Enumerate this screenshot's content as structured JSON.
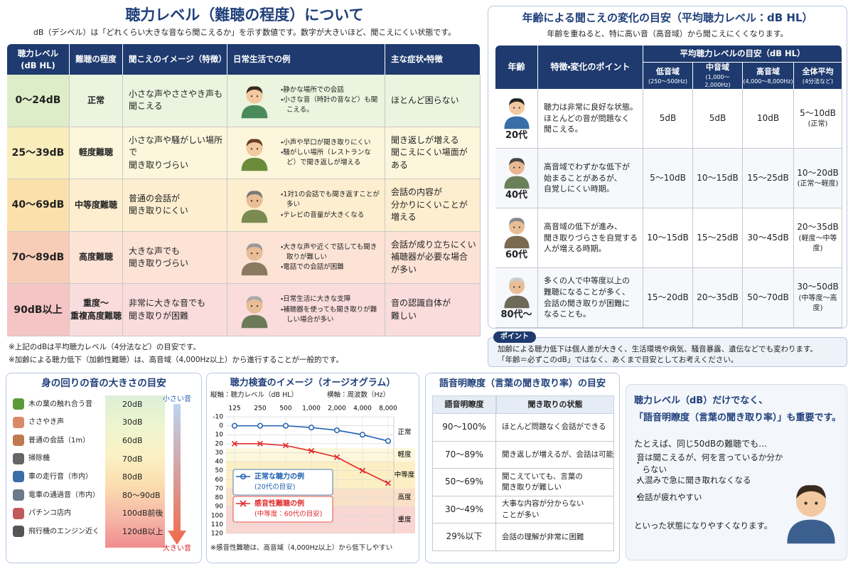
{
  "hearing_levels": {
    "title": "聴力レベル（難聴の程度）について",
    "subtitle": "dB（デシベル）は「どれくらい大きな音なら聞こえるか」を示す数値です。数字が大きいほど、聞こえにくい状態です。",
    "headers": [
      "聴力レベル\n(dB HL)",
      "難聴の程度",
      "聞こえのイメージ（特徴）",
      "日常生活での例",
      "主な症状・特徴"
    ],
    "rows": [
      {
        "level": "0〜24dB",
        "degree": "正常",
        "image": "小さな声やささやき声も\n聞こえる",
        "examples": [
          "静かな場所での会話",
          "小さな音（時計の音など）も聞こえる。"
        ],
        "symptoms": "ほとんど困らない"
      },
      {
        "level": "25〜39dB",
        "degree": "軽度難聴",
        "image": "小さな声や騒がしい場所で\n聞き取りづらい",
        "examples": [
          "小声や早口が聞き取りにくい",
          "騒がしい場所（レストランなど）で聞き返しが増える"
        ],
        "symptoms": "聞き返しが増える\n聞こえにくい場面が\nある"
      },
      {
        "level": "40〜69dB",
        "degree": "中等度難聴",
        "image": "普通の会話が\n聞き取りにくい",
        "examples": [
          "1対1の会話でも聞き返すことが多い",
          "テレビの音量が大きくなる"
        ],
        "symptoms": "会話の内容が\n分かりにくいことが\n増える"
      },
      {
        "level": "70〜89dB",
        "degree": "高度難聴",
        "image": "大きな声でも\n聞き取りづらい",
        "examples": [
          "大きな声や近くで話しても聞き取りが難しい",
          "電話での会話が困難"
        ],
        "symptoms": "会話が成り立ちにくい\n補聴器が必要な場合\nが多い"
      },
      {
        "level": "90dB以上",
        "degree": "重度〜\n重複高度難聴",
        "image": "非常に大きな音でも\n聞き取りが困難",
        "examples": [
          "日常生活に大きな支障",
          "補聴器を使っても聞き取りが難しい場合が多い"
        ],
        "symptoms": "音の認識自体が\n難しい"
      }
    ],
    "notes": [
      "※上記のdBは平均聴力レベル（4分法など）の目安です。",
      "※加齢による聴力低下（加齢性難聴）は、高音域（4,000Hz以上）から進行することが一般的です。"
    ]
  },
  "age_changes": {
    "title": "年齢による聞こえの変化の目安（平均聴力レベル：dB HL）",
    "subtitle": "年齢を重ねると、特に高い音（高音域）から聞こえにくくなります。",
    "header_age": "年齢",
    "header_points": "特徴・変化のポイント",
    "header_group": "平均聴力レベルの目安（dB HL）",
    "bands": [
      {
        "name": "低音域",
        "range": "(250〜500Hz)"
      },
      {
        "name": "中音域",
        "range": "(1,000〜2,000Hz)"
      },
      {
        "name": "高音域",
        "range": "(4,000〜8,000Hz)"
      },
      {
        "name": "全体平均",
        "range": "(4分法など)"
      }
    ],
    "rows": [
      {
        "age": "20代",
        "points": "聴力は非常に良好な状態。\nほとんどの音が問題なく\n聞こえる。",
        "low": "5dB",
        "mid": "5dB",
        "high": "10dB",
        "average": "5〜10dB",
        "average_note": "(正常)"
      },
      {
        "age": "40代",
        "points": "高音域でわずかな低下が\n始まることがあるが、\n自覚しにくい時期。",
        "low": "5〜10dB",
        "mid": "10〜15dB",
        "high": "15〜25dB",
        "average": "10〜20dB",
        "average_note": "(正常〜軽度)"
      },
      {
        "age": "60代",
        "points": "高音域の低下が進み、\n聞き取りづらさを自覚する\n人が増える時期。",
        "low": "10〜15dB",
        "mid": "15〜25dB",
        "high": "30〜45dB",
        "average": "20〜35dB",
        "average_note": "(軽度〜中等度)"
      },
      {
        "age": "80代〜",
        "points": "多くの人で中等度以上の\n難聴になることが多く、\n会話の聞き取りが困難に\nなることも。",
        "low": "15〜20dB",
        "mid": "20〜35dB",
        "high": "50〜70dB",
        "average": "30〜50dB",
        "average_note": "(中等度〜高度)"
      }
    ]
  },
  "point": {
    "label": "ポイント",
    "lines": [
      "加齢による聴力低下は個人差が大きく、生活環境や病気、騒音暴露、遺伝などでも変わります。",
      "「年齢＝必ずこのdB」ではなく、あくまで目安としてお考えください。"
    ]
  },
  "sound_levels": {
    "title": "身の回りの音の大きさの目安",
    "top_label": "小さい音",
    "bottom_label": "大きい音",
    "items": [
      {
        "name": "木の葉の触れ合う音",
        "level": "20dB"
      },
      {
        "name": "ささやき声",
        "level": "30dB"
      },
      {
        "name": "普通の会話（1m）",
        "level": "60dB"
      },
      {
        "name": "掃除機",
        "level": "70dB"
      },
      {
        "name": "車の走行音（市内）",
        "level": "80dB"
      },
      {
        "name": "電車の通過音（市内）",
        "level": "80〜90dB"
      },
      {
        "name": "パチンコ店内",
        "level": "100dB前後"
      },
      {
        "name": "飛行機のエンジン近く",
        "level": "120dB以上"
      }
    ]
  },
  "audiogram": {
    "type": "line",
    "title": "聴力検査のイメージ（オージオグラム）",
    "y_label": "縦軸：聴力レベル（dB HL）",
    "x_label": "横軸：周波数（Hz）",
    "categories": [
      "125",
      "250",
      "500",
      "1,000",
      "2,000",
      "4,000",
      "8,000"
    ],
    "ylim": [
      -10,
      120
    ],
    "y_inverted": true,
    "yticks": [
      -10,
      0,
      10,
      20,
      30,
      40,
      50,
      60,
      70,
      80,
      90,
      100,
      110,
      120
    ],
    "zones": [
      {
        "label": "正常",
        "range": [
          -10,
          25
        ],
        "color": "#ffffff"
      },
      {
        "label": "軽度",
        "range": [
          25,
          40
        ],
        "color": "#fdf8dc"
      },
      {
        "label": "中等度",
        "range": [
          40,
          70
        ],
        "color": "#fcefc4"
      },
      {
        "label": "高度",
        "range": [
          70,
          90
        ],
        "color": "#fbe0c8"
      },
      {
        "label": "重度",
        "range": [
          90,
          120
        ],
        "color": "#f9d6d2"
      }
    ],
    "series": [
      {
        "name": "正常な聴力の例",
        "note": "(20代の目安)",
        "color": "#1f5fb0",
        "marker": "circle",
        "values": [
          0,
          0,
          0,
          2,
          5,
          10,
          17
        ]
      },
      {
        "name": "感音性難聴の例",
        "note": "(中等度：60代の目安)",
        "color": "#e02a2a",
        "marker": "cross",
        "values": [
          20,
          20,
          22,
          28,
          35,
          50,
          64
        ]
      }
    ],
    "footnote": "※感音性難聴は、高音域（4,000Hz以上）から低下しやすい"
  },
  "speech": {
    "title": "語音明瞭度（言葉の聞き取り率）の目安",
    "headers": [
      "語音明瞭度",
      "聞き取りの状態"
    ],
    "rows": [
      [
        "90〜100%",
        "ほとんど問題なく会話ができる"
      ],
      [
        "70〜89%",
        "聞き返しが増えるが、会話は可能"
      ],
      [
        "50〜69%",
        "聞こえていても、言葉の\n聞き取りが難しい"
      ],
      [
        "30〜49%",
        "大事な内容が分からない\nことが多い"
      ],
      [
        "29%以下",
        "会話の理解が非常に困難"
      ]
    ]
  },
  "message": {
    "headline": [
      "聴力レベル（dB）だけでなく、",
      "「語音明瞭度（言葉の聞き取り率）」も重要です。"
    ],
    "intro": "たとえば、同じ50dBの難聴でも…",
    "bullets": [
      "音は聞こえるが、何を言っているか分からない",
      "人混みで急に聞き取れなくなる",
      "会話が疲れやすい"
    ],
    "closing": "といった状態になりやすくなります。"
  }
}
